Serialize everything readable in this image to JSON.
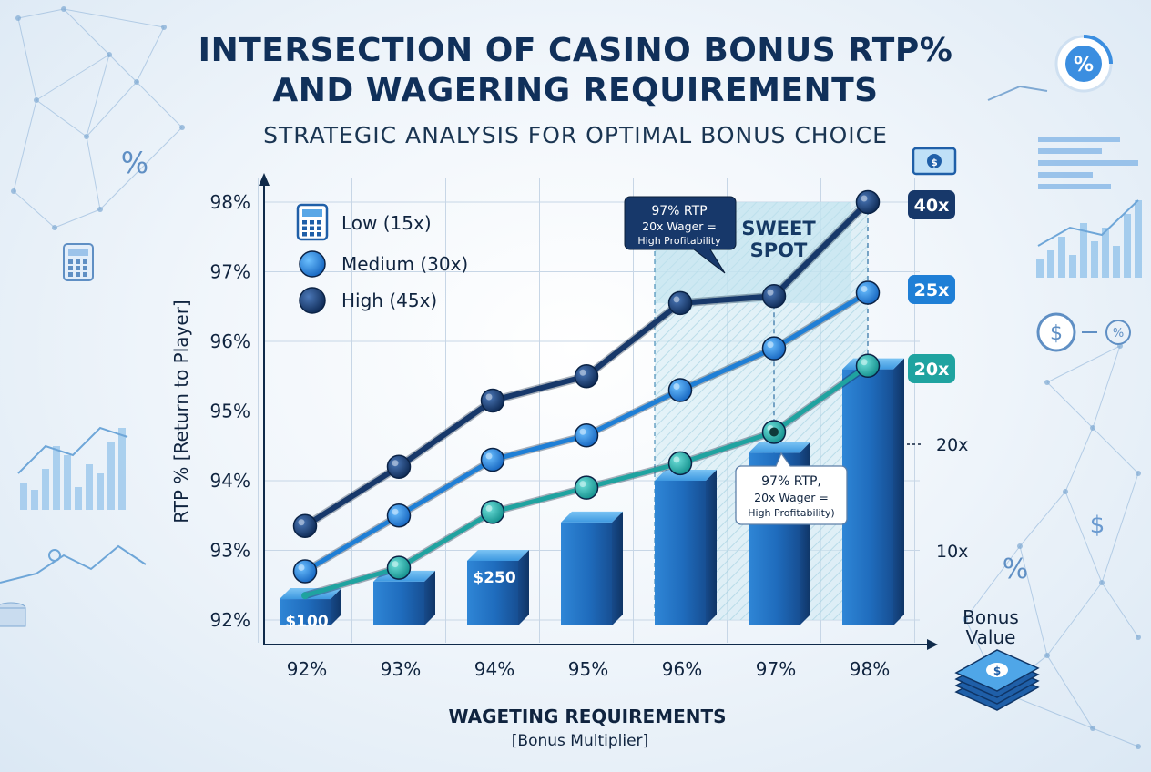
{
  "header": {
    "title_line1": "INTERSECTION OF CASINO BONUS RTP%",
    "title_line2": "AND WAGERING REQUIREMENTS",
    "subtitle": "STRATEGIC ANALYSIS FOR OPTIMAL BONUS CHOICE"
  },
  "colors": {
    "low": "#1fa3a0",
    "medium": "#1f7fd6",
    "high": "#17386a",
    "bar_top": "#4aa6ea",
    "bar_side": "#1a56a0",
    "sweet_spot": "#bfe3ee"
  },
  "chart_data": {
    "type": "line",
    "title": "INTERSECTION OF CASINO BONUS RTP% AND WAGERING REQUIREMENTS",
    "subtitle": "STRATEGIC ANALYSIS FOR OPTIMAL BONUS CHOICE",
    "ylabel": "RTP % [Return to Player]",
    "xlabel": "WAGETING REQUIREMENTS",
    "xlabel_sub": "[Bonus Multiplier]",
    "categories": [
      "92%",
      "93%",
      "94%",
      "95%",
      "96%",
      "97%",
      "98%"
    ],
    "yticks": [
      "92%",
      "93%",
      "94%",
      "95%",
      "96%",
      "97%",
      "98%"
    ],
    "ylim": [
      92,
      98
    ],
    "grid": true,
    "legend_position": "top-left",
    "series": [
      {
        "name": "Low (15x)",
        "color_key": "low",
        "values": [
          92.35,
          92.75,
          93.55,
          93.9,
          94.25,
          94.7,
          95.65
        ],
        "end_label": "20x"
      },
      {
        "name": "Medium (30x)",
        "color_key": "medium",
        "values": [
          92.7,
          93.5,
          94.3,
          94.65,
          95.3,
          95.9,
          96.7
        ],
        "end_label": "25x"
      },
      {
        "name": "High (45x)",
        "color_key": "high",
        "values": [
          93.35,
          94.2,
          95.15,
          95.5,
          96.55,
          96.65,
          98.0
        ],
        "end_label": "40x"
      }
    ],
    "bars": {
      "label": "Bonus Value",
      "values": [
        92.3,
        92.55,
        92.85,
        93.4,
        94.0,
        94.4,
        95.6
      ],
      "value_labels": [
        "$100",
        "",
        "$250",
        "",
        "",
        "",
        ""
      ]
    },
    "sweet_spot": {
      "label_line1": "SWEET",
      "label_line2": "SPOT",
      "x_from": "96%",
      "x_to": "98%"
    },
    "callouts": [
      {
        "line1": "97% RTP",
        "line2": "20x Wager =",
        "line3": "High Profitability"
      },
      {
        "line1": "97% RTP,",
        "line2": "20x Wager =",
        "line3": "High Profitability)"
      }
    ],
    "right_axis_labels": [
      "20x",
      "10x"
    ]
  }
}
